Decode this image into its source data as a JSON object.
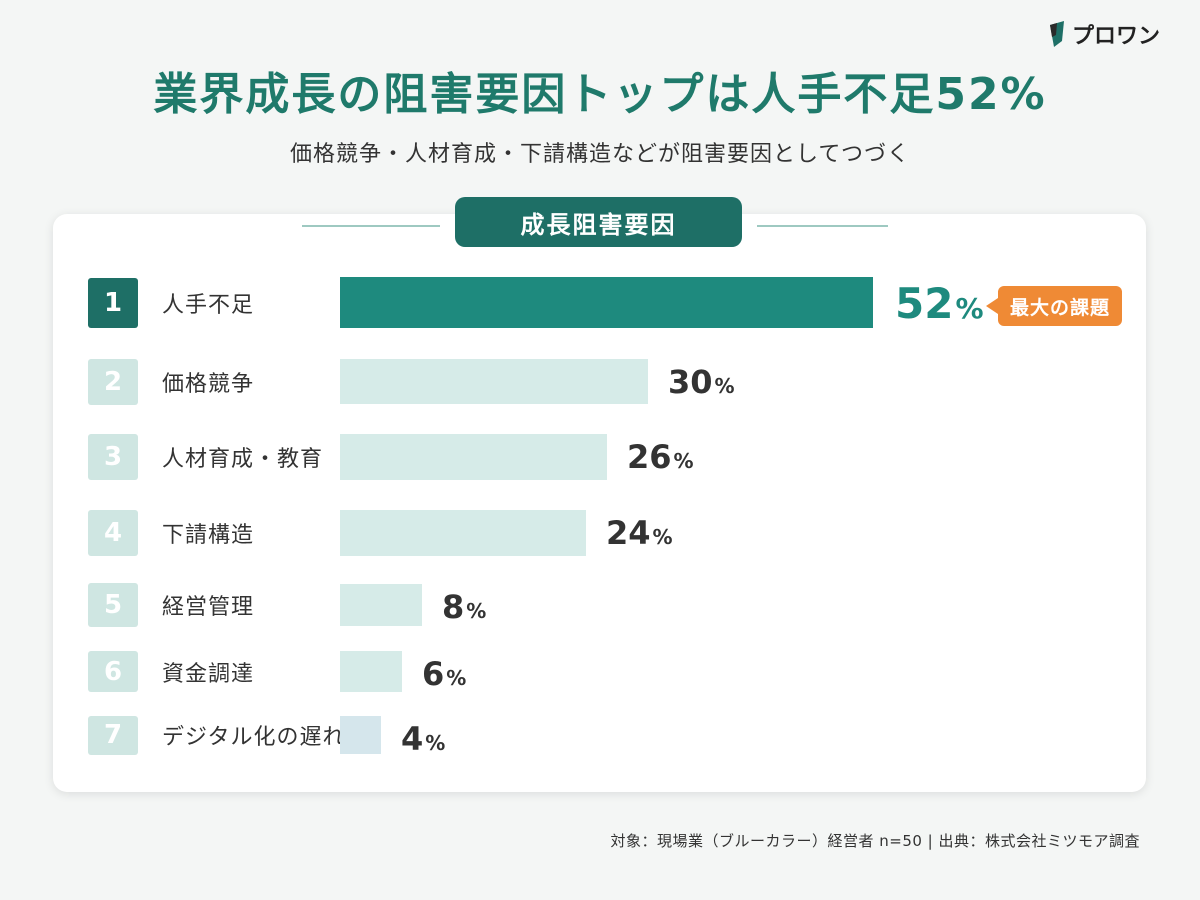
{
  "brand": {
    "name": "プロワン",
    "logo_icon": "leaf-logo-icon"
  },
  "title": "業界成長の阻害要因トップは人手不足52%",
  "subtitle": "価格競争・人材育成・下請構造などが阻害要因としてつづく",
  "card_title": "成長阻害要因",
  "badge": "最大の課題",
  "source": "対象：現場業（ブルーカラー）経営者 n=50 | 出典：株式会社ミツモア調査",
  "colors": {
    "primary": "#1e8a7e",
    "rank_top": "#1e6f66",
    "rank_other": "#cfe6e2",
    "bar_other": "#d6ebe8",
    "bar_last": "#d5e6ec",
    "accent": "#ef8a35"
  },
  "chart_data": {
    "type": "bar",
    "orientation": "horizontal",
    "title": "成長阻害要因",
    "value_suffix": "%",
    "xlim": [
      0,
      52
    ],
    "categories": [
      "人手不足",
      "価格競争",
      "人材育成・教育",
      "下請構造",
      "経営管理",
      "資金調達",
      "デジタル化の遅れ"
    ],
    "ranks": [
      "1",
      "2",
      "3",
      "4",
      "5",
      "6",
      "7"
    ],
    "values": [
      52,
      30,
      26,
      24,
      8,
      6,
      4
    ]
  }
}
